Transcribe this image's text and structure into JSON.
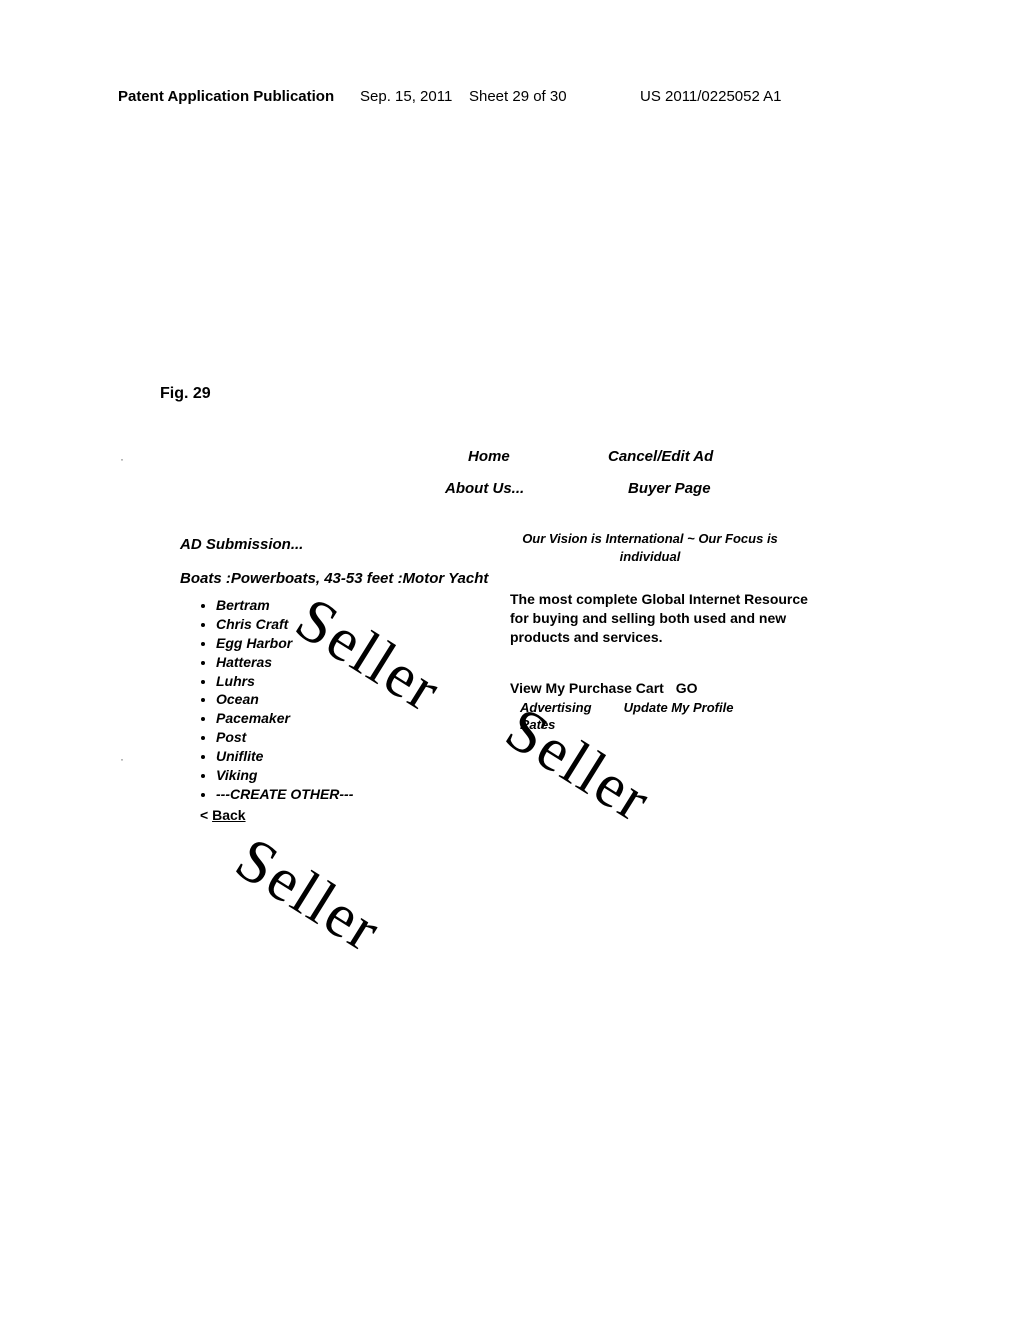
{
  "header": {
    "pub_left": "Patent Application Publication",
    "pub_date": "Sep. 15, 2011",
    "sheet": "Sheet 29 of 30",
    "pub_number": "US 2011/0225052 A1"
  },
  "figure": {
    "label": "Fig. 29"
  },
  "nav": {
    "home": "Home",
    "cancel_edit": "Cancel/Edit Ad",
    "about": "About Us...",
    "buyer": "Buyer Page"
  },
  "left": {
    "ad_submission": "AD Submission...",
    "breadcrumb": "Boats :Powerboats, 43-53 feet :Motor Yacht",
    "brands": [
      "Bertram",
      "Chris Craft",
      "Egg Harbor",
      "Hatteras",
      "Luhrs",
      "Ocean",
      "Pacemaker",
      "Post",
      "Uniflite",
      "Viking",
      "---CREATE OTHER---"
    ],
    "back_prefix": "< ",
    "back_label": "Back"
  },
  "right": {
    "vision": "Our Vision is International ~ Our Focus is individual",
    "promo": "The most complete Global Internet Resource for buying and selling both used and new products and services.",
    "cart_label": "View My Purchase Cart",
    "cart_go": "GO",
    "adv_rates": "Advertising Rates",
    "update_profile": "Update My Profile"
  },
  "watermark": {
    "text": "Seller"
  },
  "colors": {
    "text": "#000000",
    "background": "#ffffff"
  }
}
